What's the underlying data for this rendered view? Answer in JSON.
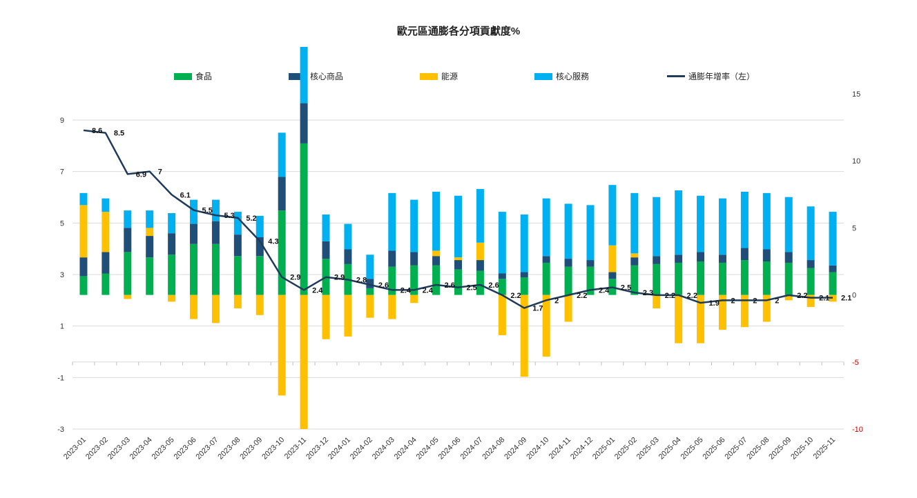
{
  "chart_data": {
    "type": "bar",
    "title": "歐元區通膨各分項貢獻度%",
    "categories": [
      "2023-01",
      "2023-02",
      "2023-03",
      "2023-04",
      "2023-05",
      "2023-06",
      "2023-07",
      "2023-08",
      "2023-09",
      "2023-10",
      "2023-11",
      "2023-12",
      "2024-01",
      "2024-02",
      "2024-03",
      "2024-04",
      "2024-05",
      "2024-06",
      "2024-07",
      "2024-08",
      "2024-09",
      "2024-10",
      "2024-11",
      "2024-12",
      "2025-01",
      "2025-02",
      "2025-03",
      "2025-04",
      "2025-05",
      "2025-06",
      "2025-07",
      "2025-08",
      "2025-09",
      "2025-10",
      "2025-11"
    ],
    "stacked": true,
    "bar_axis": "right",
    "series": [
      {
        "name": "食品",
        "axis": "right",
        "color": "#00B050",
        "values": [
          1.4,
          1.6,
          3.2,
          2.8,
          3.0,
          3.8,
          3.8,
          2.9,
          2.9,
          6.3,
          11.3,
          2.7,
          2.3,
          0.5,
          2.1,
          2.2,
          2.2,
          1.9,
          1.8,
          1.2,
          1.3,
          2.4,
          2.1,
          2.1,
          1.2,
          2.2,
          2.3,
          2.4,
          2.5,
          2.4,
          2.6,
          2.5,
          2.4,
          2.0,
          1.7
        ]
      },
      {
        "name": "核心商品",
        "axis": "right",
        "color": "#1F4E79",
        "values": [
          1.4,
          1.6,
          1.8,
          1.6,
          1.6,
          1.5,
          1.7,
          1.6,
          1.4,
          2.5,
          3.0,
          1.3,
          1.1,
          0.7,
          1.2,
          1.0,
          0.7,
          0.7,
          0.8,
          0.4,
          0.4,
          0.5,
          0.6,
          0.5,
          0.5,
          0.6,
          0.6,
          0.6,
          0.7,
          0.6,
          0.9,
          0.9,
          0.8,
          0.6,
          0.5
        ]
      },
      {
        "name": "能源",
        "axis": "right",
        "color": "#FFC000",
        "values": [
          3.9,
          3.0,
          -0.3,
          0.6,
          -0.5,
          -1.8,
          -2.1,
          -1.0,
          -1.5,
          -7.5,
          -10.0,
          -3.3,
          -3.1,
          -1.7,
          -1.8,
          -0.6,
          0.4,
          0.2,
          1.3,
          -3.0,
          -6.1,
          -4.6,
          -2.0,
          0.0,
          2.0,
          0.3,
          -1.0,
          -3.6,
          -3.6,
          -2.6,
          -2.4,
          -2.0,
          -0.4,
          -0.9,
          -0.5
        ]
      },
      {
        "name": "核心服務",
        "axis": "right",
        "color": "#00B0F0",
        "values": [
          0.9,
          1.0,
          1.3,
          1.3,
          1.5,
          1.8,
          1.6,
          1.7,
          1.6,
          3.3,
          4.2,
          2.0,
          1.9,
          1.8,
          4.3,
          3.9,
          4.4,
          4.6,
          4.0,
          4.6,
          4.3,
          4.3,
          4.1,
          4.1,
          4.5,
          4.5,
          4.4,
          4.8,
          4.2,
          4.2,
          4.2,
          4.2,
          4.1,
          4.0,
          4.0
        ]
      },
      {
        "name": "通膨年增率（左）",
        "axis": "left",
        "type": "line",
        "color": "#1F3B5A",
        "values": [
          8.6,
          8.5,
          6.9,
          7.0,
          6.1,
          5.5,
          5.3,
          5.2,
          4.3,
          2.9,
          2.4,
          2.9,
          2.8,
          2.6,
          2.4,
          2.4,
          2.6,
          2.5,
          2.6,
          2.2,
          1.7,
          2.0,
          2.2,
          2.4,
          2.5,
          2.3,
          2.2,
          2.2,
          1.9,
          2.0,
          2.0,
          2.0,
          2.2,
          2.1,
          2.1
        ],
        "labels": [
          "8.6",
          "8.5",
          "6.9",
          "7",
          "6.1",
          "5.5",
          "5.3",
          "5.2",
          "4.3",
          "2.9",
          "2.4",
          "2.9",
          "2.8",
          "2.6",
          "2.4",
          "2.4",
          "2.6",
          "2.5",
          "2.6",
          "2.2",
          "1.7",
          "2",
          "2.2",
          "2.4",
          "2.5",
          "2.3",
          "2.2",
          "2.2",
          "1.9",
          "2",
          "2",
          "2",
          "2.2",
          "2.1",
          "2.1"
        ]
      }
    ],
    "left_axis": {
      "min": -3,
      "max": 10,
      "ticks": [
        9,
        7,
        5,
        3,
        1,
        -1,
        -3
      ],
      "tick_labels": [
        "9",
        "7",
        "5",
        "3",
        "1",
        "-1",
        "-3"
      ]
    },
    "right_axis": {
      "min": -10,
      "max": 15,
      "ticks": [
        15,
        10,
        5,
        0,
        -5,
        -10
      ],
      "tick_labels": [
        "15",
        "10",
        "5",
        "0",
        "-5",
        "-10"
      ]
    },
    "gridlines": true,
    "legend_position": "top"
  }
}
